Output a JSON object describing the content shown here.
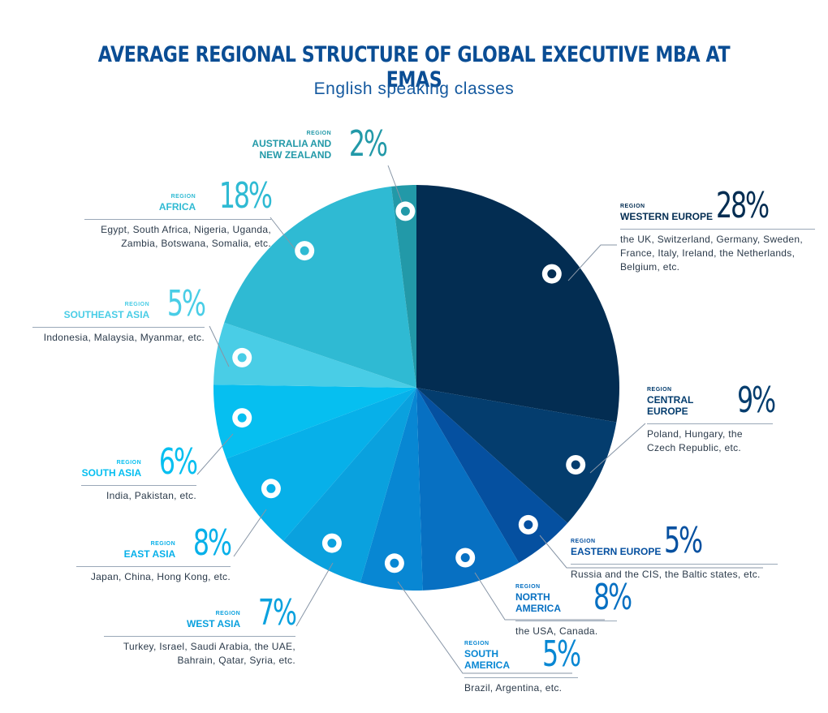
{
  "chart_data": {
    "type": "pie",
    "title": "AVERAGE REGIONAL STRUCTURE OF GLOBAL EXECUTIVE MBA AT EMAS",
    "subtitle": "English speaking classes",
    "region_kicker": "REGION",
    "slices": [
      {
        "name": "WESTERN EUROPE",
        "value": 28,
        "label": "28%",
        "desc": "the UK, Switzerland, Germany, Sweden, France, Italy, Ireland, the Netherlands, Belgium, etc.",
        "color": "#032d52"
      },
      {
        "name": "CENTRAL EUROPE",
        "value": 9,
        "label": "9%",
        "desc": "Poland, Hungary, the Czech Republic, etc.",
        "color": "#043d6e"
      },
      {
        "name": "EASTERN EUROPE",
        "value": 5,
        "label": "5%",
        "desc": "Russia and the CIS, the Baltic states, etc.",
        "color": "#0550a0"
      },
      {
        "name": "NORTH AMERICA",
        "value": 8,
        "label": "8%",
        "desc": "the USA, Canada.",
        "color": "#0770c2"
      },
      {
        "name": "SOUTH AMERICA",
        "value": 5,
        "label": "5%",
        "desc": "Brazil, Argentina, etc.",
        "color": "#0887d3"
      },
      {
        "name": "WEST ASIA",
        "value": 7,
        "label": "7%",
        "desc": "Turkey, Israel, Saudi Arabia, the UAE, Bahrain, Qatar, Syria, etc.",
        "color": "#0aa1de"
      },
      {
        "name": "EAST ASIA",
        "value": 8,
        "label": "8%",
        "desc": "Japan, China, Hong Kong, etc.",
        "color": "#07b0e9"
      },
      {
        "name": "SOUTH ASIA",
        "value": 6,
        "label": "6%",
        "desc": "India, Pakistan, etc.",
        "color": "#06bff0"
      },
      {
        "name": "SOUTHEAST ASIA",
        "value": 5,
        "label": "5%",
        "desc": "Indonesia, Malaysia, Myanmar, etc.",
        "color": "#49cde6"
      },
      {
        "name": "AFRICA",
        "value": 18,
        "label": "18%",
        "desc": "Egypt, South Africa, Nigeria, Uganda, Zambia, Botswana, Somalia, etc.",
        "color": "#2fbad3"
      },
      {
        "name": "AUSTRALIA AND NEW ZEALAND",
        "value": 2,
        "label": "2%",
        "desc": "",
        "color": "#2299a8"
      }
    ]
  },
  "colors": {
    "title": "#0a4d94",
    "subtitle": "#14599f",
    "leader": "#8795a6"
  }
}
